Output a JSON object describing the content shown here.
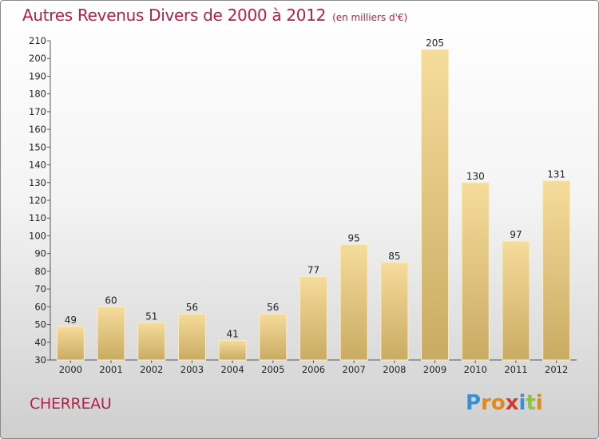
{
  "header": {
    "title": "Autres Revenus Divers de 2000 à 2012",
    "subtitle": "(en milliers d'€)"
  },
  "footer": {
    "commune": "CHERREAU",
    "brand": [
      "P",
      "r",
      "o",
      "x",
      "i",
      "t",
      "i"
    ]
  },
  "colors": {
    "title": "#b5204a",
    "bar_top": "#f6dc9b",
    "bar_bottom": "#c9ab63",
    "bar_edge": "#f8ecc8"
  },
  "chart_data": {
    "type": "bar",
    "categories": [
      "2000",
      "2001",
      "2002",
      "2003",
      "2004",
      "2005",
      "2006",
      "2007",
      "2008",
      "2009",
      "2010",
      "2011",
      "2012"
    ],
    "values": [
      49,
      60,
      51,
      56,
      41,
      56,
      77,
      95,
      85,
      205,
      130,
      97,
      131
    ],
    "ylim": [
      30,
      210
    ],
    "yticks": [
      30,
      40,
      50,
      60,
      70,
      80,
      90,
      100,
      110,
      120,
      130,
      140,
      150,
      160,
      170,
      180,
      190,
      200,
      210
    ],
    "grid": false,
    "legend": "none"
  }
}
